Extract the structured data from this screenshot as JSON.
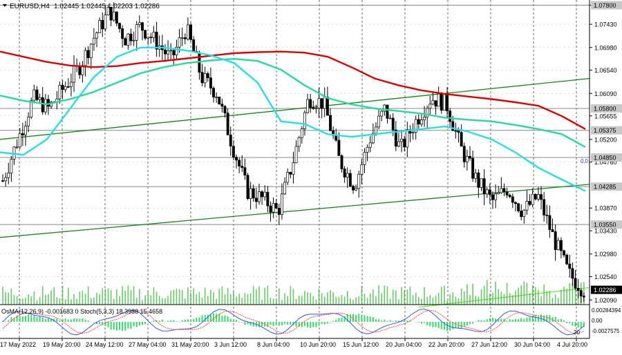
{
  "header": {
    "symbol_label": "EURUSD,H4",
    "ohlc_label": "1.02445 1.02445 1.02203 1.02286"
  },
  "price_scale": {
    "labels": [
      "1.07800",
      "1.07430",
      "1.06980",
      "1.06540",
      "1.06090",
      "1.05655",
      "1.05200",
      "1.04760",
      "1.03870",
      "1.03430",
      "1.02980",
      "1.02540",
      "1.02090"
    ],
    "levels": [
      {
        "label": "1.07800",
        "value": 1.078,
        "highlight": true
      },
      {
        "label": "1.05800",
        "value": 1.058,
        "highlight": true
      },
      {
        "label": "1.05375",
        "value": 1.05375,
        "highlight": true
      },
      {
        "label": "1.04850",
        "value": 1.0485,
        "highlight": true
      },
      {
        "label": "1.04285",
        "value": 1.04285,
        "highlight": true
      },
      {
        "label": "1.03550",
        "value": 1.0355,
        "highlight": true
      }
    ],
    "current_price_label": "1.02286",
    "zero_marker": "0.0"
  },
  "indicator": {
    "label": "OsMA(12,26,9) -0.001683 0  Stoch(5,3,3) 18.3988 15.4658",
    "scale_labels": [
      "0.00284394",
      "0.00",
      "-0.0027575"
    ],
    "stoch_marker": "20"
  },
  "time_axis": {
    "labels": [
      "17 May 2022",
      "19 May 20:00",
      "24 May 12:00",
      "27 May 04:00",
      "31 May 20:00",
      "3 Jun 12:00",
      "8 Jun 04:00",
      "10 Jun 20:00",
      "15 Jun 12:00",
      "20 Jun 04:00",
      "22 Jun 20:00",
      "27 Jun 12:00",
      "30 Jun 04:00",
      "4 Jul 20:00"
    ]
  },
  "colors": {
    "bull_candle": "#000000",
    "bear_candle": "#000000",
    "ma_red": "#e00000",
    "ma_teal": "#22dd99",
    "ma_cyan": "#22e0e8",
    "trendline_green": "#118811",
    "trendline_light": "#66ee22",
    "volume_bar": "#33bb33",
    "osma_hist": "#33dd66",
    "stoch_main": "#3355ff",
    "stoch_signal": "#ff4444",
    "grid": "#000000",
    "level_line": "#888888"
  },
  "chart_data": {
    "type": "candlestick",
    "symbol": "EURUSD",
    "timeframe": "H4",
    "ylim": [
      1.02,
      1.079
    ],
    "last_close": 1.02286,
    "series": [
      {
        "name": "moving average (red)",
        "values": [
          1.069,
          1.068,
          1.067,
          1.0663,
          1.066,
          1.0662,
          1.0668,
          1.0672,
          1.0677,
          1.0682,
          1.0687,
          1.0689,
          1.069,
          1.0688,
          1.068,
          1.066,
          1.0638,
          1.0625,
          1.0615,
          1.0608,
          1.0603,
          1.0598,
          1.0592,
          1.0585,
          1.0565,
          1.054
        ]
      },
      {
        "name": "moving average (teal)",
        "values": [
          1.0605,
          1.0595,
          1.0588,
          1.0598,
          1.0612,
          1.063,
          1.0648,
          1.066,
          1.0668,
          1.0673,
          1.0676,
          1.0672,
          1.0655,
          1.0625,
          1.06,
          1.0588,
          1.058,
          1.0575,
          1.057,
          1.0562,
          1.0558,
          1.0555,
          1.0548,
          1.054,
          1.053,
          1.0505
        ]
      },
      {
        "name": "moving average (cyan)",
        "values": [
          1.0495,
          1.049,
          1.052,
          1.058,
          1.064,
          1.068,
          1.0698,
          1.0698,
          1.0692,
          1.0683,
          1.0668,
          1.063,
          1.0555,
          1.055,
          1.053,
          1.0525,
          1.053,
          1.0535,
          1.054,
          1.0545,
          1.0535,
          1.052,
          1.0495,
          1.0465,
          1.0442,
          1.042
        ]
      },
      {
        "name": "price (approx. path)",
        "values": [
          1.044,
          1.052,
          1.06,
          1.058,
          1.062,
          1.066,
          1.072,
          1.077,
          1.0715,
          1.074,
          1.071,
          1.0675,
          1.0735,
          1.064,
          1.061,
          1.051,
          1.042,
          1.0405,
          1.038,
          1.048,
          1.06,
          1.059,
          1.048,
          1.043,
          1.052,
          1.058,
          1.05,
          1.0555,
          1.06,
          1.059,
          1.05,
          1.044,
          1.04,
          1.0425,
          1.038,
          1.041,
          1.033,
          1.026,
          1.0228
        ]
      }
    ],
    "trendlines": [
      {
        "name": "green trendline (upper)",
        "points": [
          [
            0,
            1.052
          ],
          [
            1,
            1.0638
          ]
        ]
      },
      {
        "name": "green trendline (lower)",
        "points": [
          [
            0,
            1.033
          ],
          [
            1,
            1.0433
          ]
        ]
      },
      {
        "name": "light-green trendline",
        "points": [
          [
            0.71,
            1.0195
          ],
          [
            1,
            1.0233
          ]
        ]
      }
    ],
    "xlabel": "",
    "ylabel": ""
  }
}
